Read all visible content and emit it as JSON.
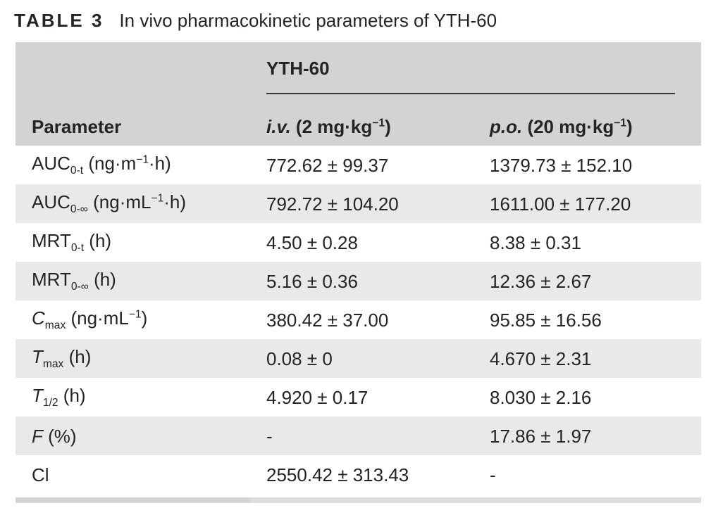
{
  "title": {
    "label": "TABLE 3",
    "text": "In vivo pharmacokinetic parameters of YTH-60"
  },
  "table": {
    "group_header": "YTH-60",
    "headers": [
      {
        "name": "parameter",
        "segments": [
          [
            "Parameter"
          ]
        ]
      },
      {
        "name": "iv-dose",
        "segments": [
          [
            "i.v.",
            "bi"
          ],
          [
            " (2 mg·kg"
          ],
          [
            "−1",
            "sup"
          ],
          [
            ")"
          ]
        ]
      },
      {
        "name": "po-dose",
        "segments": [
          [
            "p.o.",
            "bi"
          ],
          [
            " (20 mg·kg"
          ],
          [
            "−1",
            "sup"
          ],
          [
            ")"
          ]
        ]
      }
    ],
    "rows": [
      {
        "param": [
          [
            "AUC"
          ],
          [
            "0-t",
            "sub"
          ],
          [
            " (ng·m"
          ],
          [
            "−1",
            "sup"
          ],
          [
            "·h)"
          ]
        ],
        "iv": "772.62 ± 99.37",
        "po": "1379.73 ± 152.10"
      },
      {
        "param": [
          [
            "AUC"
          ],
          [
            "0-∞",
            "sub"
          ],
          [
            " (ng·mL"
          ],
          [
            "−1",
            "sup"
          ],
          [
            "·h)"
          ]
        ],
        "iv": "792.72 ± 104.20",
        "po": "1611.00 ± 177.20"
      },
      {
        "param": [
          [
            "MRT"
          ],
          [
            "0-t",
            "sub"
          ],
          [
            " (h)"
          ]
        ],
        "iv": "4.50 ± 0.28",
        "po": "8.38 ± 0.31"
      },
      {
        "param": [
          [
            "MRT"
          ],
          [
            "0-∞",
            "sub"
          ],
          [
            " (h)"
          ]
        ],
        "iv": "5.16 ± 0.36",
        "po": "12.36 ± 2.67"
      },
      {
        "param": [
          [
            "C",
            "i"
          ],
          [
            "max",
            "sub"
          ],
          [
            " (ng·mL"
          ],
          [
            "−1",
            "sup"
          ],
          [
            ")"
          ]
        ],
        "iv": "380.42 ± 37.00",
        "po": "95.85 ± 16.56"
      },
      {
        "param": [
          [
            "T",
            "i"
          ],
          [
            "max",
            "sub"
          ],
          [
            " (h)"
          ]
        ],
        "iv": "0.08 ± 0",
        "po": "4.670 ± 2.31"
      },
      {
        "param": [
          [
            "T",
            "i"
          ],
          [
            "1/2",
            "sub"
          ],
          [
            " (h)"
          ]
        ],
        "iv": "4.920 ± 0.17",
        "po": "8.030 ± 2.16"
      },
      {
        "param": [
          [
            "F",
            "i"
          ],
          [
            " (%)"
          ]
        ],
        "iv": "-",
        "po": "17.86 ± 1.97"
      },
      {
        "param": [
          [
            "Cl"
          ]
        ],
        "iv": "2550.42 ± 313.43",
        "po": "-"
      }
    ],
    "colors": {
      "header_bg": "#d1d3d4",
      "band_bg": "#e9e9ea",
      "text": "#272324",
      "group_rule": "#3b3738",
      "bottom_bar_left": "#d3d5d6",
      "bottom_bar_right": "#dcddde"
    }
  }
}
